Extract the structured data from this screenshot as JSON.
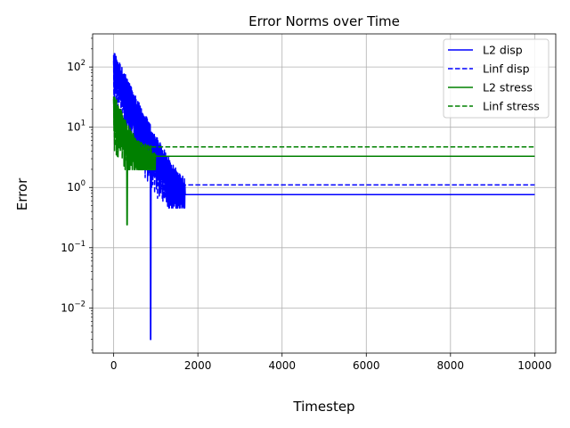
{
  "chart_data": {
    "type": "line",
    "title": "Error Norms over Time",
    "xlabel": "Timestep",
    "ylabel": "Error",
    "xlim": [
      -500,
      10500
    ],
    "ylim_log10": [
      -2.75,
      2.55
    ],
    "yscale": "log",
    "grid": true,
    "legend_position": "top-right",
    "x_ticks": [
      {
        "value": 0,
        "label": "0"
      },
      {
        "value": 2000,
        "label": "2000"
      },
      {
        "value": 4000,
        "label": "4000"
      },
      {
        "value": 6000,
        "label": "6000"
      },
      {
        "value": 8000,
        "label": "8000"
      },
      {
        "value": 10000,
        "label": "10000"
      }
    ],
    "y_ticks": [
      {
        "exp": -2,
        "label": "10",
        "sup": "−2"
      },
      {
        "exp": -1,
        "label": "10",
        "sup": "−1"
      },
      {
        "exp": 0,
        "label": "10",
        "sup": "0"
      },
      {
        "exp": 1,
        "label": "10",
        "sup": "1"
      },
      {
        "exp": 2,
        "label": "10",
        "sup": "2"
      }
    ],
    "series": [
      {
        "name": "L2 disp",
        "color": "#0000ff",
        "dash": false,
        "transient": {
          "x_end": 1700,
          "amp_start": 190,
          "decay": 300,
          "steady": 0.76,
          "min": 0.003,
          "dip_x": 880
        },
        "steady_value": 0.76
      },
      {
        "name": "Linf disp",
        "color": "#0000ff",
        "dash": true,
        "transient": {
          "x_end": 1600,
          "amp_start": 160,
          "decay": 280,
          "steady": 1.1
        },
        "steady_value": 1.1
      },
      {
        "name": "L2 stress",
        "color": "#008000",
        "dash": false,
        "transient": {
          "x_end": 1000,
          "amp_start": 35,
          "decay": 230,
          "steady": 3.3,
          "min": 0.24,
          "dip_x": 320
        },
        "steady_value": 3.3
      },
      {
        "name": "Linf stress",
        "color": "#008000",
        "dash": true,
        "transient": {
          "x_end": 900,
          "amp_start": 30,
          "decay": 200,
          "steady": 4.7
        },
        "steady_value": 4.7
      }
    ]
  }
}
